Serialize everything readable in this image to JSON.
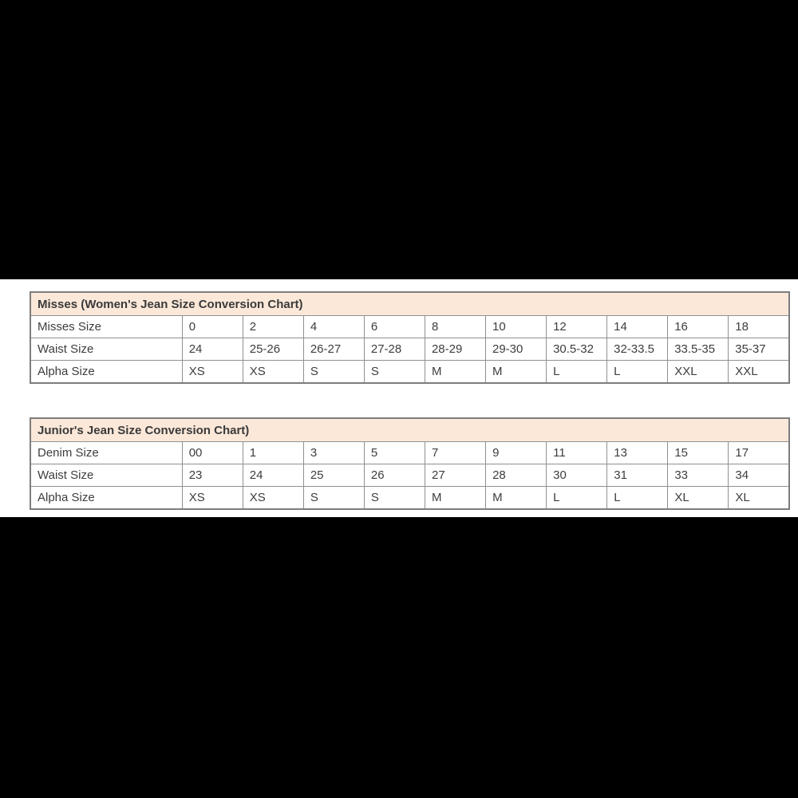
{
  "page": {
    "background_color": "#000000",
    "panel_background_color": "#ffffff"
  },
  "colors": {
    "table_title_background": "#fbe8d9",
    "table_border": "#7d7d7d",
    "cell_border": "#909090",
    "text": "#3d3d3d"
  },
  "tables": [
    {
      "id": "misses-conversion-table",
      "title": "Misses (Women's Jean Size Conversion Chart)",
      "rows": [
        {
          "label": "Misses Size",
          "values": [
            "0",
            "2",
            "4",
            "6",
            "8",
            "10",
            "12",
            "14",
            "16",
            "18"
          ]
        },
        {
          "label": "Waist Size",
          "values": [
            "24",
            "25-26",
            "26-27",
            "27-28",
            "28-29",
            "29-30",
            "30.5-32",
            "32-33.5",
            "33.5-35",
            "35-37"
          ]
        },
        {
          "label": "Alpha Size",
          "values": [
            "XS",
            "XS",
            "S",
            "S",
            "M",
            "M",
            "L",
            "L",
            "XXL",
            "XXL"
          ]
        }
      ]
    },
    {
      "id": "juniors-conversion-table",
      "title": "Junior's Jean Size Conversion Chart)",
      "rows": [
        {
          "label": "Denim Size",
          "values": [
            "00",
            "1",
            "3",
            "5",
            "7",
            "9",
            "11",
            "13",
            "15",
            "17"
          ]
        },
        {
          "label": "Waist Size",
          "values": [
            "23",
            "24",
            "25",
            "26",
            "27",
            "28",
            "30",
            "31",
            "33",
            "34"
          ]
        },
        {
          "label": "Alpha Size",
          "values": [
            "XS",
            "XS",
            "S",
            "S",
            "M",
            "M",
            "L",
            "L",
            "XL",
            "XL"
          ]
        }
      ]
    }
  ]
}
